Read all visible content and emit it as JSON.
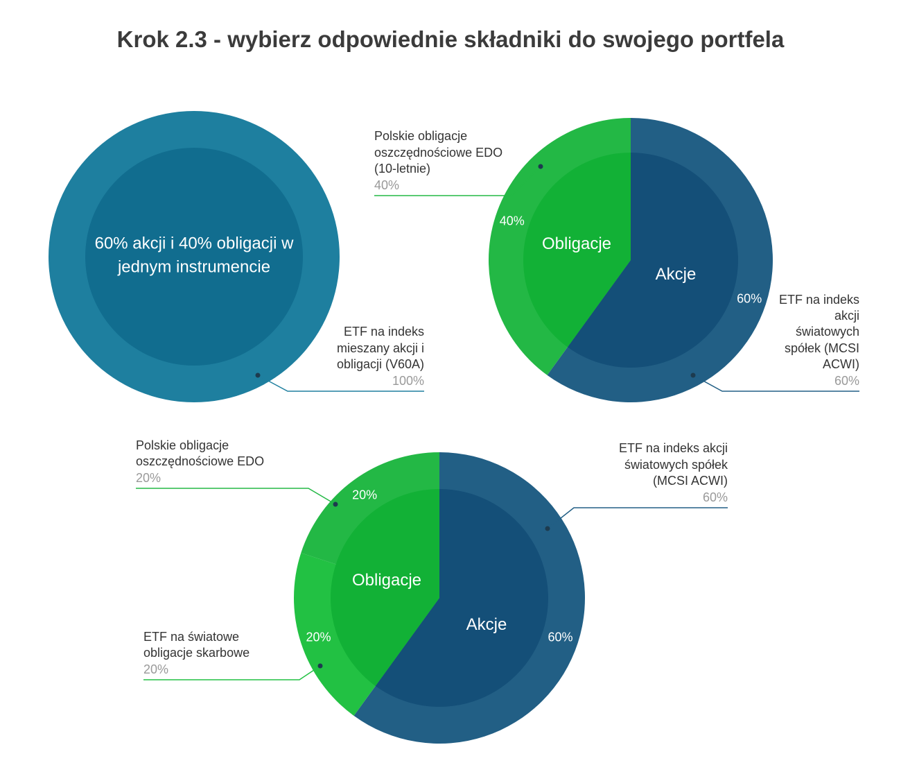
{
  "title": "Krok 2.3 - wybierz odpowiednie składniki do swojego portfela",
  "chart_data": [
    {
      "type": "pie",
      "categories": [
        "ETF na indeks mieszany akcji i obligacji (V60A)"
      ],
      "values": [
        100
      ],
      "value_labels": [
        "100%"
      ],
      "colors": [
        "#1e7f9f"
      ],
      "inner": {
        "categories": [
          "60% akcji i 40% obligacji w jednym instrumencie"
        ],
        "values": [
          100
        ],
        "colors": [
          "#116d8f"
        ]
      }
    },
    {
      "type": "pie",
      "categories": [
        "ETF na indeks akcji światowych spółek (MCSI ACWI)",
        "Polskie obligacje oszczędnościowe EDO (10-letnie)"
      ],
      "values": [
        60,
        40
      ],
      "value_labels": [
        "60%",
        "40%"
      ],
      "colors": [
        "#225f85",
        "#23b845"
      ],
      "inner": {
        "categories": [
          "Akcje",
          "Obligacje"
        ],
        "values": [
          60,
          40
        ],
        "colors": [
          "#144f78",
          "#12b136"
        ]
      }
    },
    {
      "type": "pie",
      "categories": [
        "ETF na indeks akcji światowych spółek (MCSI ACWI)",
        "ETF na światowe obligacje skarbowe",
        "Polskie obligacje oszczędnościowe EDO"
      ],
      "values": [
        60,
        20,
        20
      ],
      "value_labels": [
        "60%",
        "20%",
        "20%"
      ],
      "colors": [
        "#225f85",
        "#22c143",
        "#23b845"
      ],
      "inner": {
        "categories": [
          "Akcje",
          "Obligacje"
        ],
        "values": [
          60,
          40
        ],
        "colors": [
          "#144f78",
          "#12b136"
        ]
      }
    }
  ]
}
